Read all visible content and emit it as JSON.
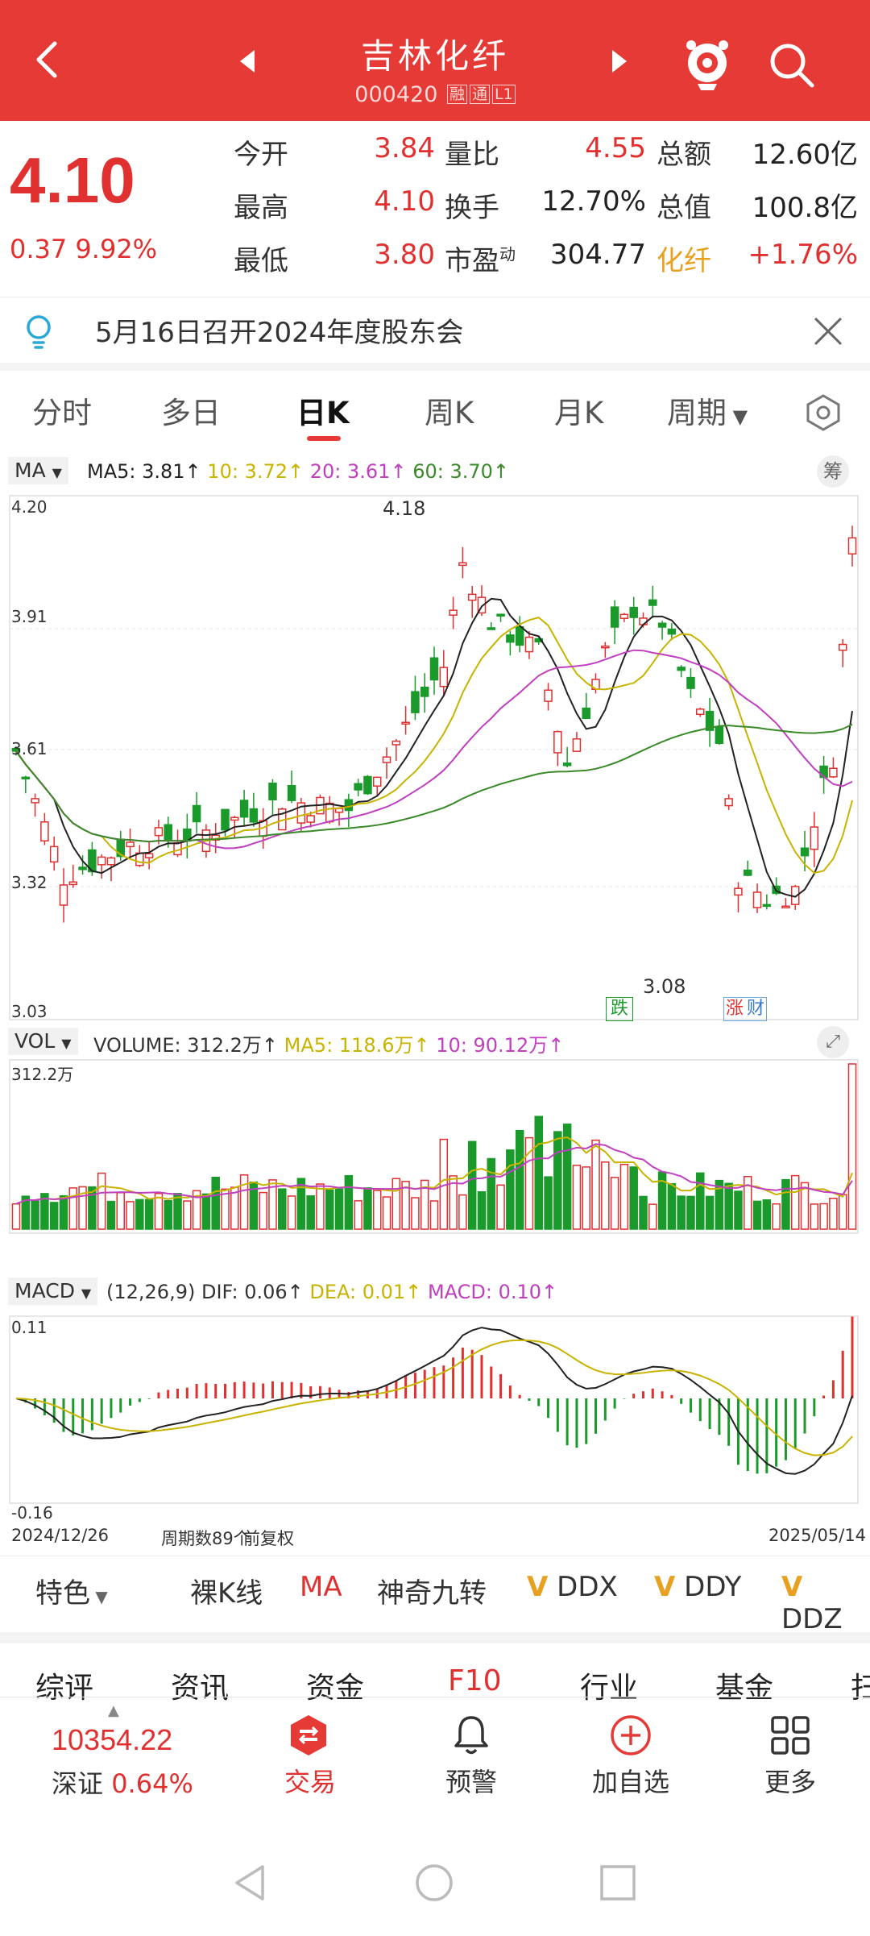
{
  "header": {
    "title": "吉林化纤",
    "code": "000420",
    "tags": [
      "融",
      "通",
      "L1"
    ]
  },
  "quote": {
    "price": "4.10",
    "change": "0.37",
    "change_pct": "9.92%",
    "rows": [
      [
        {
          "label": "今开",
          "value": "3.84"
        },
        {
          "label": "量比",
          "value": "4.55"
        },
        {
          "label": "总额",
          "value": "12.60亿"
        }
      ],
      [
        {
          "label": "最高",
          "value": "4.10"
        },
        {
          "label": "换手",
          "value": "12.70%"
        },
        {
          "label": "总值",
          "value": "100.8亿"
        }
      ],
      [
        {
          "label": "最低",
          "value": "3.80"
        },
        {
          "label": "市盈",
          "sup": "动",
          "value": "304.77"
        },
        {
          "label": "化纤",
          "value": "+1.76%"
        }
      ]
    ]
  },
  "notice": {
    "text": "5月16日召开2024年度股东会"
  },
  "tabs": [
    "分时",
    "多日",
    "日K",
    "周K",
    "月K",
    "周期"
  ],
  "active_tab": "日K",
  "ma_panel": {
    "selector": "MA",
    "legend": {
      "ma5": "MA5: 3.81↑",
      "ma10": "10: 3.72↑",
      "ma20": "20: 3.61↑",
      "ma60": "60: 3.70↑"
    },
    "right_button": "筹",
    "y_ticks": [
      "4.20",
      "3.91",
      "3.61",
      "3.32",
      "3.03"
    ],
    "high_label": "4.18",
    "low_label": "3.08",
    "badge_fall": "跌",
    "badge_rise": [
      "涨",
      "财"
    ]
  },
  "vol_panel": {
    "selector": "VOL",
    "legend": {
      "volume": "VOLUME: 312.2万↑",
      "ma5": "MA5: 118.6万↑",
      "ma10": "10: 90.12万↑"
    },
    "y_top": "312.2万"
  },
  "macd_panel": {
    "selector": "MACD",
    "legend": {
      "params": "(12,26,9)",
      "dif": "DIF: 0.06↑",
      "dea": "DEA: 0.01↑",
      "macd": "MACD: 0.10↑"
    },
    "y_top": "0.11",
    "y_bottom": "-0.16",
    "start_date": "2024/12/26",
    "period_count": "周期数89个",
    "adjust": "前复权",
    "end_date": "2025/05/14"
  },
  "toolbar": {
    "special": "特色",
    "items": [
      "裸K线",
      "MA",
      "神奇九转",
      "DDX",
      "DDY",
      "DDZ"
    ],
    "v": "V"
  },
  "f10_tabs": [
    "综评",
    "资讯",
    "资金",
    "F10",
    "行业",
    "基金",
    "扫"
  ],
  "bottom_nav": {
    "index_value": "10354.22",
    "index_name": "深证",
    "index_pct": "0.64%",
    "items": [
      "交易",
      "预警",
      "加自选",
      "更多"
    ]
  },
  "colors": {
    "brand": "#e63a36",
    "up": "#e03030",
    "down": "#1a9a2a",
    "ma5": "#222222",
    "ma10": "#c8b400",
    "ma20": "#c040c0",
    "ma60": "#3a8a2a"
  }
}
